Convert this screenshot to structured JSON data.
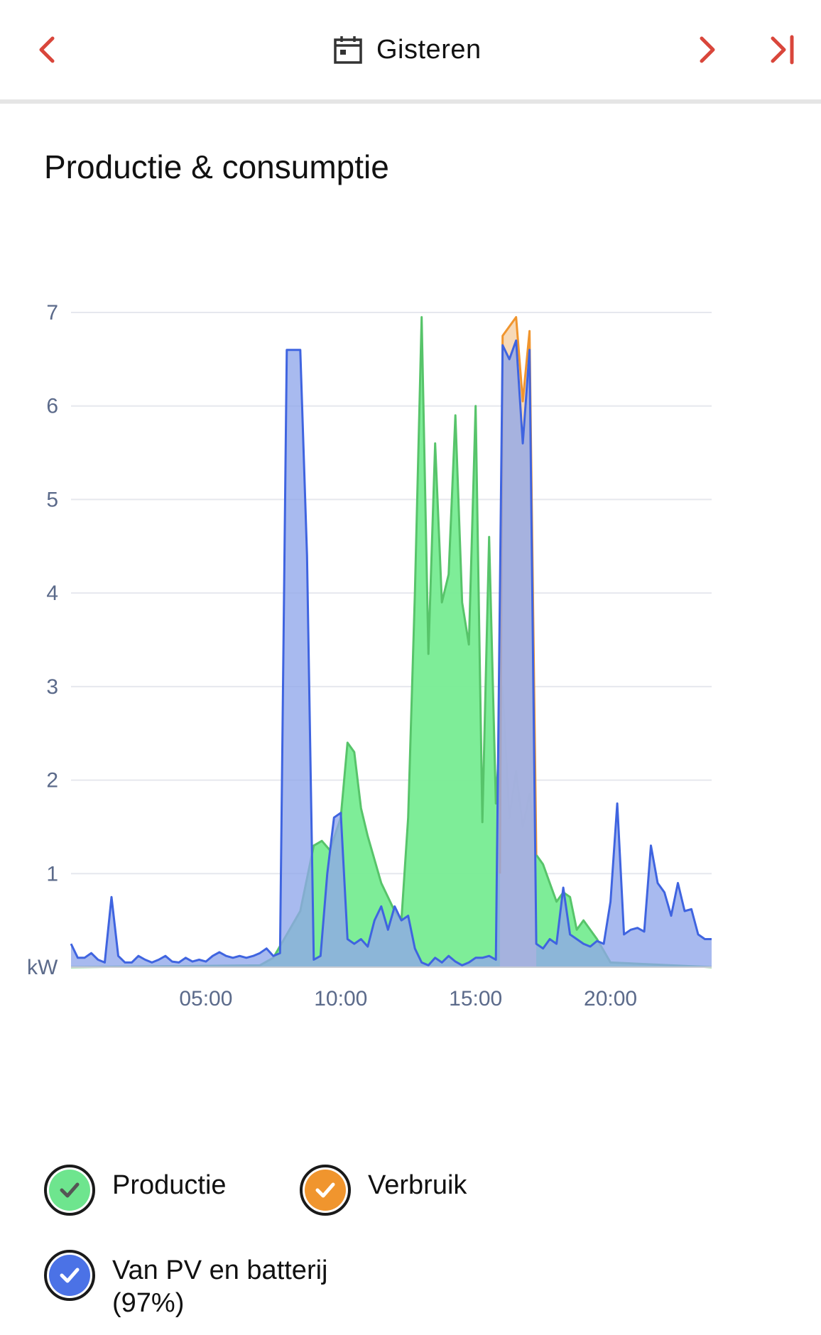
{
  "header": {
    "date_label": "Gisteren",
    "prev_icon": "chevron-left-icon",
    "next_icon": "chevron-right-icon",
    "last_icon": "skip-to-end-icon",
    "calendar_icon": "calendar-icon",
    "accent_color": "#d9463b"
  },
  "section": {
    "title": "Productie & consumptie"
  },
  "legend": {
    "items": [
      {
        "label": "Productie",
        "color": "#6ee58e",
        "check_color": "#555555"
      },
      {
        "label": "Verbruik",
        "color": "#f0952e",
        "check_color": "#ffffff"
      },
      {
        "label": "Van PV en batterij",
        "sublabel": "(97%)",
        "color": "#4b72e6",
        "check_color": "#ffffff"
      }
    ]
  },
  "chart_data": {
    "type": "area",
    "title": "",
    "xlabel": "",
    "ylabel": "kW",
    "ylim": [
      0,
      7
    ],
    "xlim": [
      0,
      23.75
    ],
    "yticks": [
      1,
      2,
      3,
      4,
      5,
      6,
      7
    ],
    "xticks": [
      {
        "value": 5,
        "label": "05:00"
      },
      {
        "value": 10,
        "label": "10:00"
      },
      {
        "value": 15,
        "label": "15:00"
      },
      {
        "value": 20,
        "label": "20:00"
      }
    ],
    "grid": true,
    "legend_position": "bottom",
    "series": [
      {
        "name": "Productie",
        "color": "#57c46a",
        "fill": "#77ec92",
        "x": [
          0,
          7.0,
          7.5,
          7.9,
          8.5,
          9.0,
          9.3,
          9.6,
          10.0,
          10.25,
          10.5,
          10.75,
          11.0,
          11.5,
          12.0,
          12.25,
          12.5,
          12.75,
          13.0,
          13.25,
          13.5,
          13.75,
          14.0,
          14.25,
          14.5,
          14.75,
          15.0,
          15.25,
          15.5,
          15.75,
          16.0,
          16.25,
          16.5,
          16.75,
          17.0,
          17.25,
          17.5,
          17.75,
          18.0,
          18.25,
          18.5,
          18.75,
          19.0,
          19.5,
          20.0,
          23.75
        ],
        "y": [
          0,
          0.02,
          0.1,
          0.3,
          0.6,
          1.3,
          1.35,
          1.25,
          1.6,
          2.4,
          2.3,
          1.7,
          1.4,
          0.9,
          0.6,
          0.5,
          1.6,
          4.0,
          6.95,
          3.35,
          5.6,
          3.9,
          4.2,
          5.9,
          3.9,
          3.45,
          6.0,
          1.55,
          4.6,
          1.75,
          3.0,
          1.6,
          2.1,
          1.5,
          1.85,
          1.2,
          1.1,
          0.9,
          0.7,
          0.8,
          0.75,
          0.4,
          0.5,
          0.3,
          0.05,
          0
        ]
      },
      {
        "name": "Verbruik",
        "color": "#f0952e",
        "fill": "#f7d7b3",
        "x": [
          15.9,
          16.0,
          16.25,
          16.5,
          16.75,
          17.0,
          17.25
        ],
        "y": [
          1.0,
          6.75,
          6.85,
          6.95,
          6.05,
          6.8,
          1.2
        ]
      },
      {
        "name": "Van PV en batterij",
        "color": "#3f64e0",
        "fill": "#8fa6ea",
        "x": [
          0,
          0.25,
          0.5,
          0.75,
          1.0,
          1.25,
          1.5,
          1.75,
          2.0,
          2.25,
          2.5,
          2.75,
          3.0,
          3.25,
          3.5,
          3.75,
          4.0,
          4.25,
          4.5,
          4.75,
          5.0,
          5.25,
          5.5,
          5.75,
          6.0,
          6.25,
          6.5,
          6.75,
          7.0,
          7.25,
          7.5,
          7.75,
          8.0,
          8.25,
          8.5,
          8.75,
          9.0,
          9.25,
          9.5,
          9.75,
          10.0,
          10.25,
          10.5,
          10.75,
          11.0,
          11.25,
          11.5,
          11.75,
          12.0,
          12.25,
          12.5,
          12.75,
          13.0,
          13.25,
          13.5,
          13.75,
          14.0,
          14.25,
          14.5,
          14.75,
          15.0,
          15.25,
          15.5,
          15.75,
          16.0,
          16.25,
          16.5,
          16.75,
          17.0,
          17.25,
          17.5,
          17.75,
          18.0,
          18.25,
          18.5,
          18.75,
          19.0,
          19.25,
          19.5,
          19.75,
          20.0,
          20.25,
          20.5,
          20.75,
          21.0,
          21.25,
          21.5,
          21.75,
          22.0,
          22.25,
          22.5,
          22.75,
          23.0,
          23.25,
          23.5,
          23.75
        ],
        "y": [
          0.25,
          0.1,
          0.1,
          0.15,
          0.08,
          0.05,
          0.75,
          0.12,
          0.05,
          0.05,
          0.12,
          0.08,
          0.05,
          0.08,
          0.12,
          0.06,
          0.05,
          0.1,
          0.06,
          0.08,
          0.06,
          0.12,
          0.16,
          0.12,
          0.1,
          0.12,
          0.1,
          0.12,
          0.15,
          0.2,
          0.12,
          0.15,
          6.6,
          6.6,
          6.6,
          4.4,
          0.08,
          0.12,
          1.0,
          1.6,
          1.65,
          0.3,
          0.25,
          0.3,
          0.22,
          0.5,
          0.65,
          0.4,
          0.65,
          0.5,
          0.55,
          0.2,
          0.05,
          0.02,
          0.1,
          0.05,
          0.12,
          0.06,
          0.02,
          0.05,
          0.1,
          0.1,
          0.12,
          0.08,
          6.65,
          6.5,
          6.7,
          5.6,
          6.6,
          0.25,
          0.2,
          0.3,
          0.25,
          0.85,
          0.35,
          0.3,
          0.25,
          0.22,
          0.28,
          0.25,
          0.7,
          1.75,
          0.35,
          0.4,
          0.42,
          0.38,
          1.3,
          0.9,
          0.8,
          0.55,
          0.9,
          0.6,
          0.62,
          0.35,
          0.3,
          0.3
        ]
      }
    ]
  }
}
